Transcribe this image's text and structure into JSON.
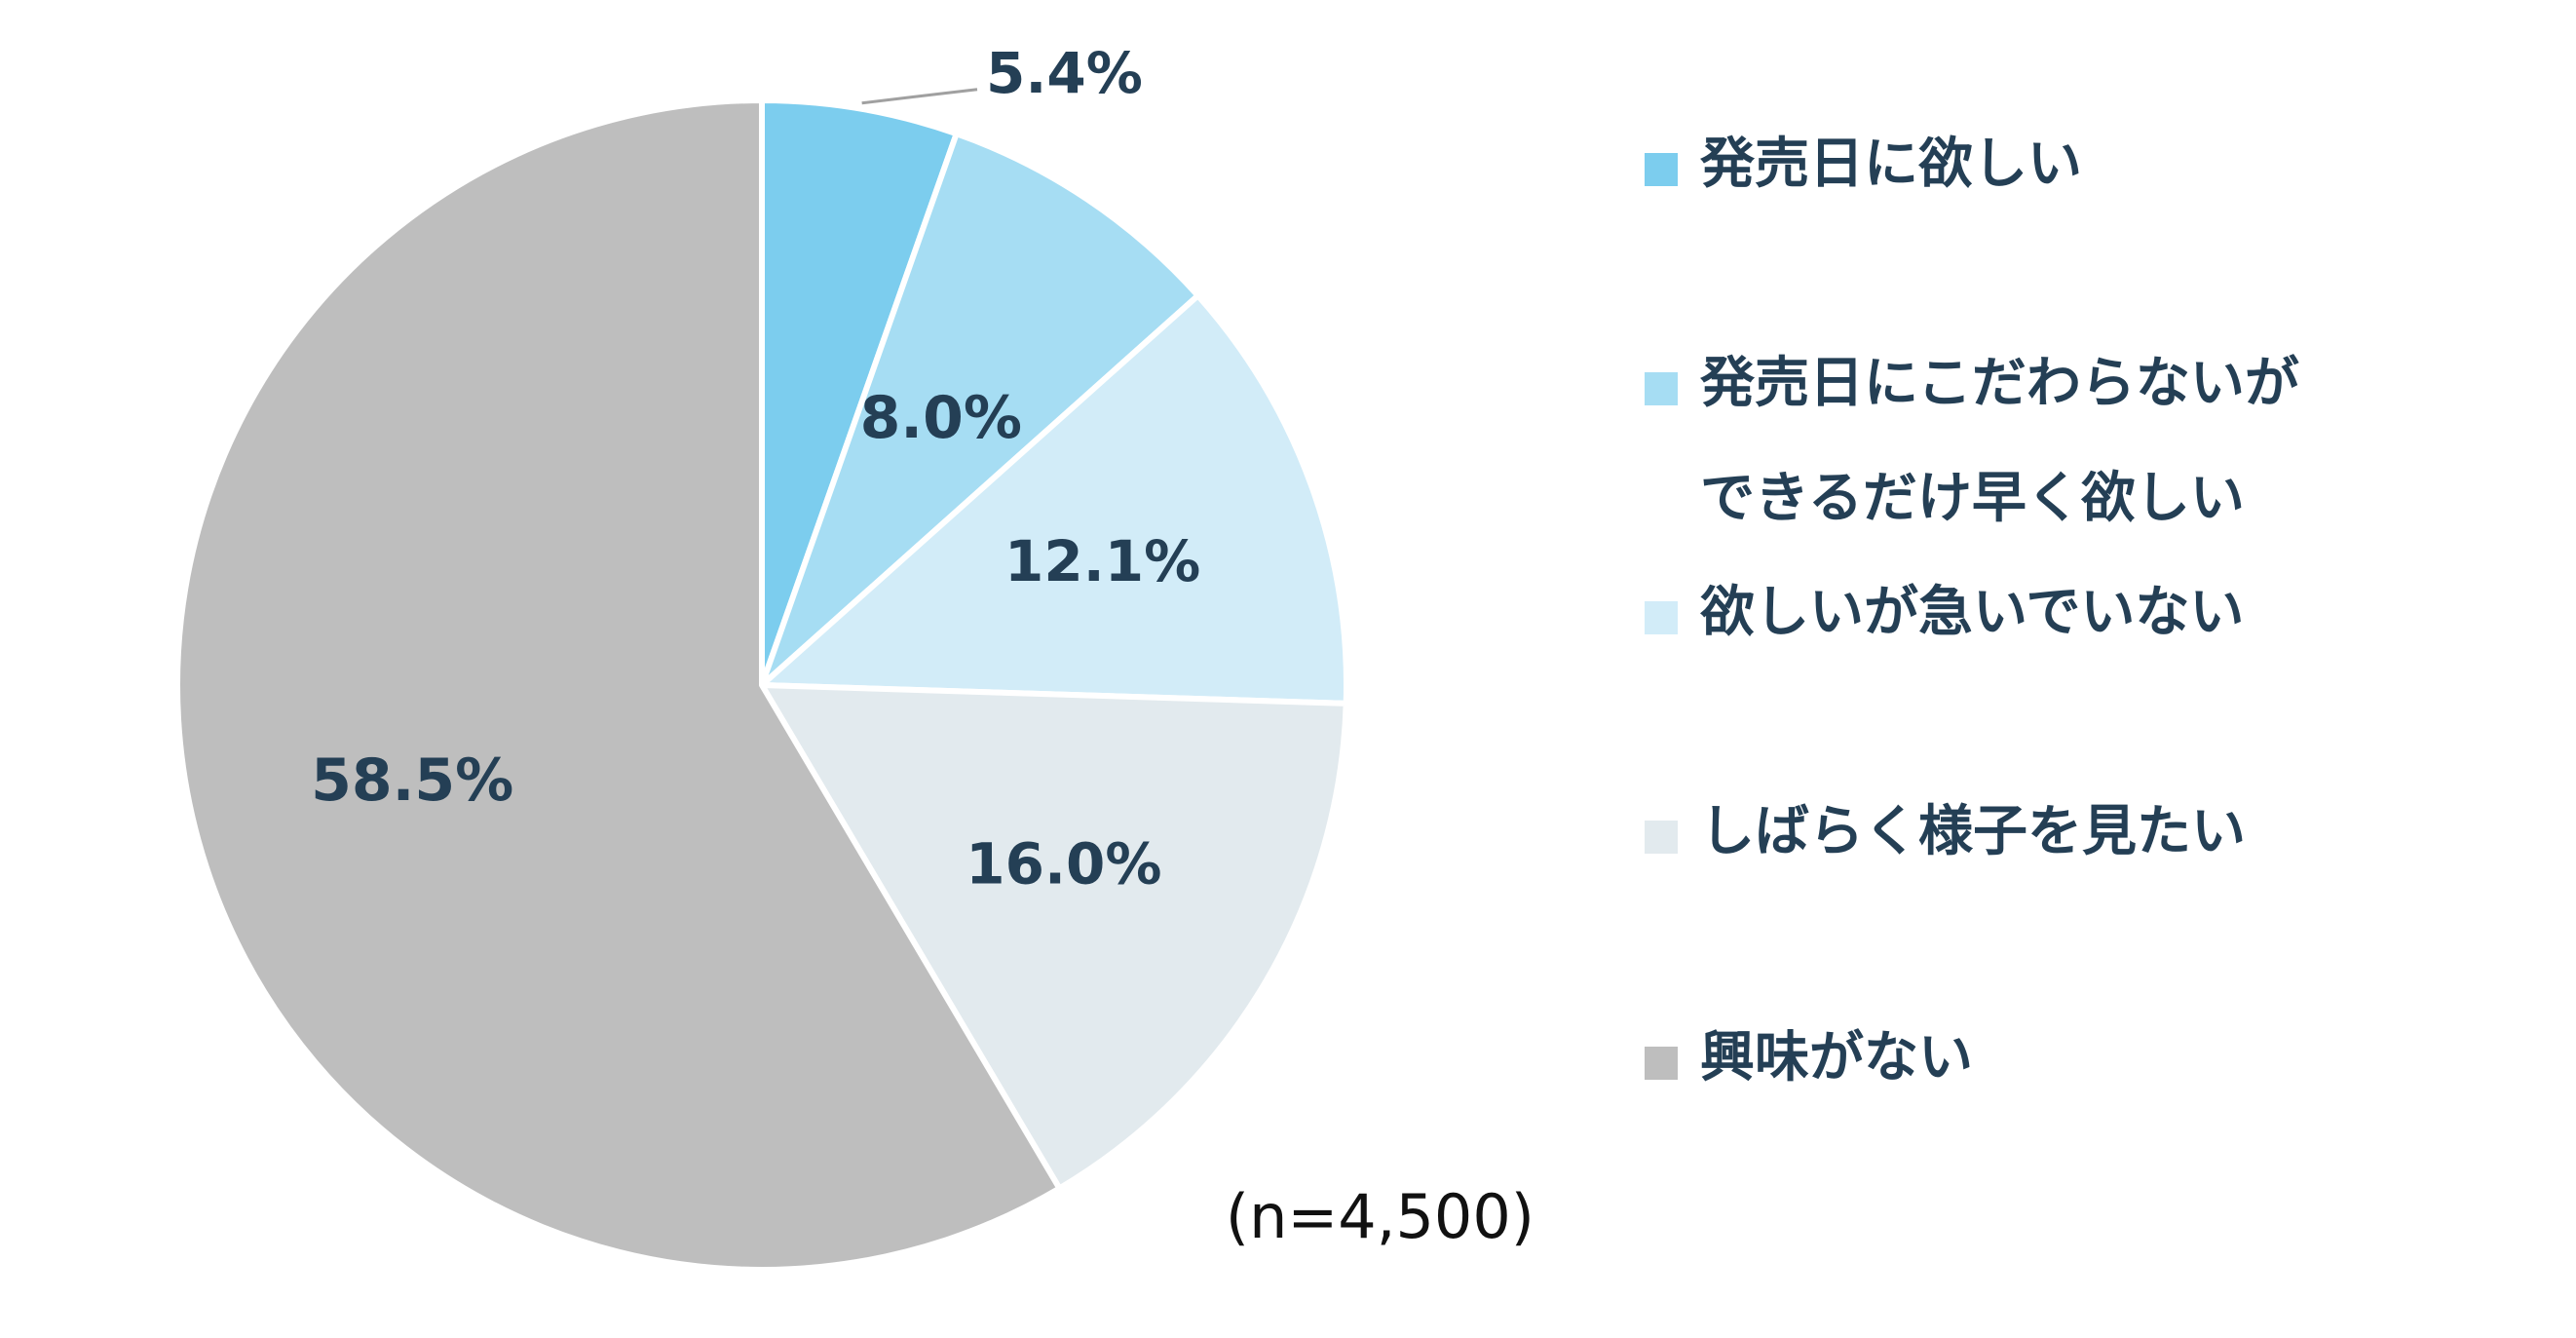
{
  "chart_data": {
    "type": "pie",
    "start_angle": "12 o'clock",
    "direction": "clockwise",
    "slices": [
      {
        "label": "発売日に欲しい",
        "value": 5.4,
        "value_label": "5.4%",
        "color": "#7ccdee"
      },
      {
        "label": "発売日にこだわらないができるだけ早く欲しい",
        "label_lines": [
          "発売日にこだわらないが",
          "できるだけ早く欲しい"
        ],
        "value": 8.0,
        "value_label": "8.0%",
        "color": "#a6ddf3"
      },
      {
        "label": "欲しいが急いでいない",
        "value": 12.1,
        "value_label": "12.1%",
        "color": "#d2ecf8"
      },
      {
        "label": "しばらく様子を見たい",
        "value": 16.0,
        "value_label": "16.0%",
        "color": "#e2eaee"
      },
      {
        "label": "興味がない",
        "value": 58.5,
        "value_label": "58.5%",
        "color": "#bebebe"
      }
    ],
    "legend_position": "right",
    "sample_size_note": "(n=4,500)",
    "text_color": "#243f55",
    "slice_border_color": "#ffffff"
  }
}
